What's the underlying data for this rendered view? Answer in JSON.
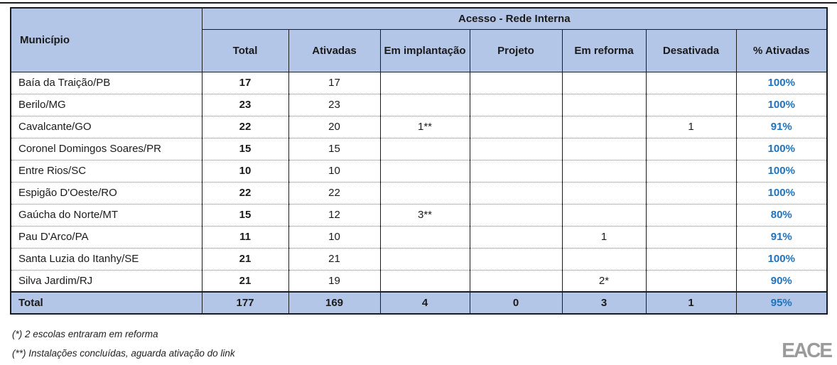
{
  "table": {
    "group_header": "Acesso - Rede Interna",
    "municipio_header": "Município",
    "columns": [
      "Total",
      "Ativadas",
      "Em implantação",
      "Projeto",
      "Em reforma",
      "Desativada",
      "% Ativadas"
    ],
    "column_keys": [
      "total",
      "ativadas",
      "em_implantacao",
      "projeto",
      "em_reforma",
      "desativada",
      "pct"
    ],
    "rows": [
      {
        "municipio": "Baía da Traição/PB",
        "total": "17",
        "ativadas": "17",
        "em_implantacao": "",
        "projeto": "",
        "em_reforma": "",
        "desativada": "",
        "pct": "100%"
      },
      {
        "municipio": "Berilo/MG",
        "total": "23",
        "ativadas": "23",
        "em_implantacao": "",
        "projeto": "",
        "em_reforma": "",
        "desativada": "",
        "pct": "100%"
      },
      {
        "municipio": "Cavalcante/GO",
        "total": "22",
        "ativadas": "20",
        "em_implantacao": "1**",
        "projeto": "",
        "em_reforma": "",
        "desativada": "1",
        "pct": "91%"
      },
      {
        "municipio": "Coronel Domingos Soares/PR",
        "total": "15",
        "ativadas": "15",
        "em_implantacao": "",
        "projeto": "",
        "em_reforma": "",
        "desativada": "",
        "pct": "100%"
      },
      {
        "municipio": "Entre Rios/SC",
        "total": "10",
        "ativadas": "10",
        "em_implantacao": "",
        "projeto": "",
        "em_reforma": "",
        "desativada": "",
        "pct": "100%"
      },
      {
        "municipio": "Espigão D'Oeste/RO",
        "total": "22",
        "ativadas": "22",
        "em_implantacao": "",
        "projeto": "",
        "em_reforma": "",
        "desativada": "",
        "pct": "100%"
      },
      {
        "municipio": "Gaúcha do Norte/MT",
        "total": "15",
        "ativadas": "12",
        "em_implantacao": "3**",
        "projeto": "",
        "em_reforma": "",
        "desativada": "",
        "pct": "80%"
      },
      {
        "municipio": "Pau D'Arco/PA",
        "total": "11",
        "ativadas": "10",
        "em_implantacao": "",
        "projeto": "",
        "em_reforma": "1",
        "desativada": "",
        "pct": "91%"
      },
      {
        "municipio": "Santa Luzia do Itanhy/SE",
        "total": "21",
        "ativadas": "21",
        "em_implantacao": "",
        "projeto": "",
        "em_reforma": "",
        "desativada": "",
        "pct": "100%"
      },
      {
        "municipio": "Silva Jardim/RJ",
        "total": "21",
        "ativadas": "19",
        "em_implantacao": "",
        "projeto": "",
        "em_reforma": "2*",
        "desativada": "",
        "pct": "90%"
      }
    ],
    "total_row": {
      "municipio": "Total",
      "total": "177",
      "ativadas": "169",
      "em_implantacao": "4",
      "projeto": "0",
      "em_reforma": "3",
      "desativada": "1",
      "pct": "95%"
    }
  },
  "footnotes": {
    "note1": "(*) 2 escolas entraram em reforma",
    "note2": "(**) Instalações concluídas, aguarda ativação do link"
  },
  "logo_text": "EACE",
  "colors": {
    "header_bg": "#b4c6e7",
    "pct_blue": "#1e73be",
    "border": "#1c1c1c",
    "logo_gray": "#9b9b9b"
  }
}
